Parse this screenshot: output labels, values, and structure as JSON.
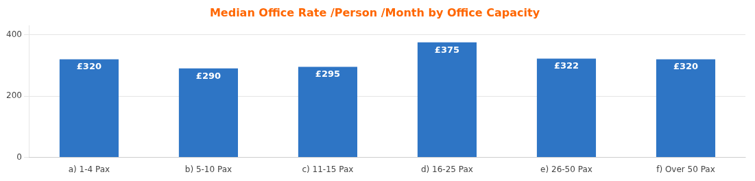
{
  "chart_data": {
    "type": "bar",
    "title": "Median Office Rate /Person /Month by Office Capacity",
    "categories": [
      "a) 1-4 Pax",
      "b) 5-10 Pax",
      "c) 11-15 Pax",
      "d) 16-25 Pax",
      "e) 26-50 Pax",
      "f) Over 50 Pax"
    ],
    "values": [
      320,
      290,
      295,
      375,
      322,
      320
    ],
    "value_labels": [
      "£320",
      "£290",
      "£295",
      "£375",
      "£322",
      "£320"
    ],
    "data_labels": true,
    "color": "#2E75C5",
    "ylim": [
      0,
      430
    ],
    "yticks": [
      0,
      200,
      400
    ],
    "grid": true
  }
}
